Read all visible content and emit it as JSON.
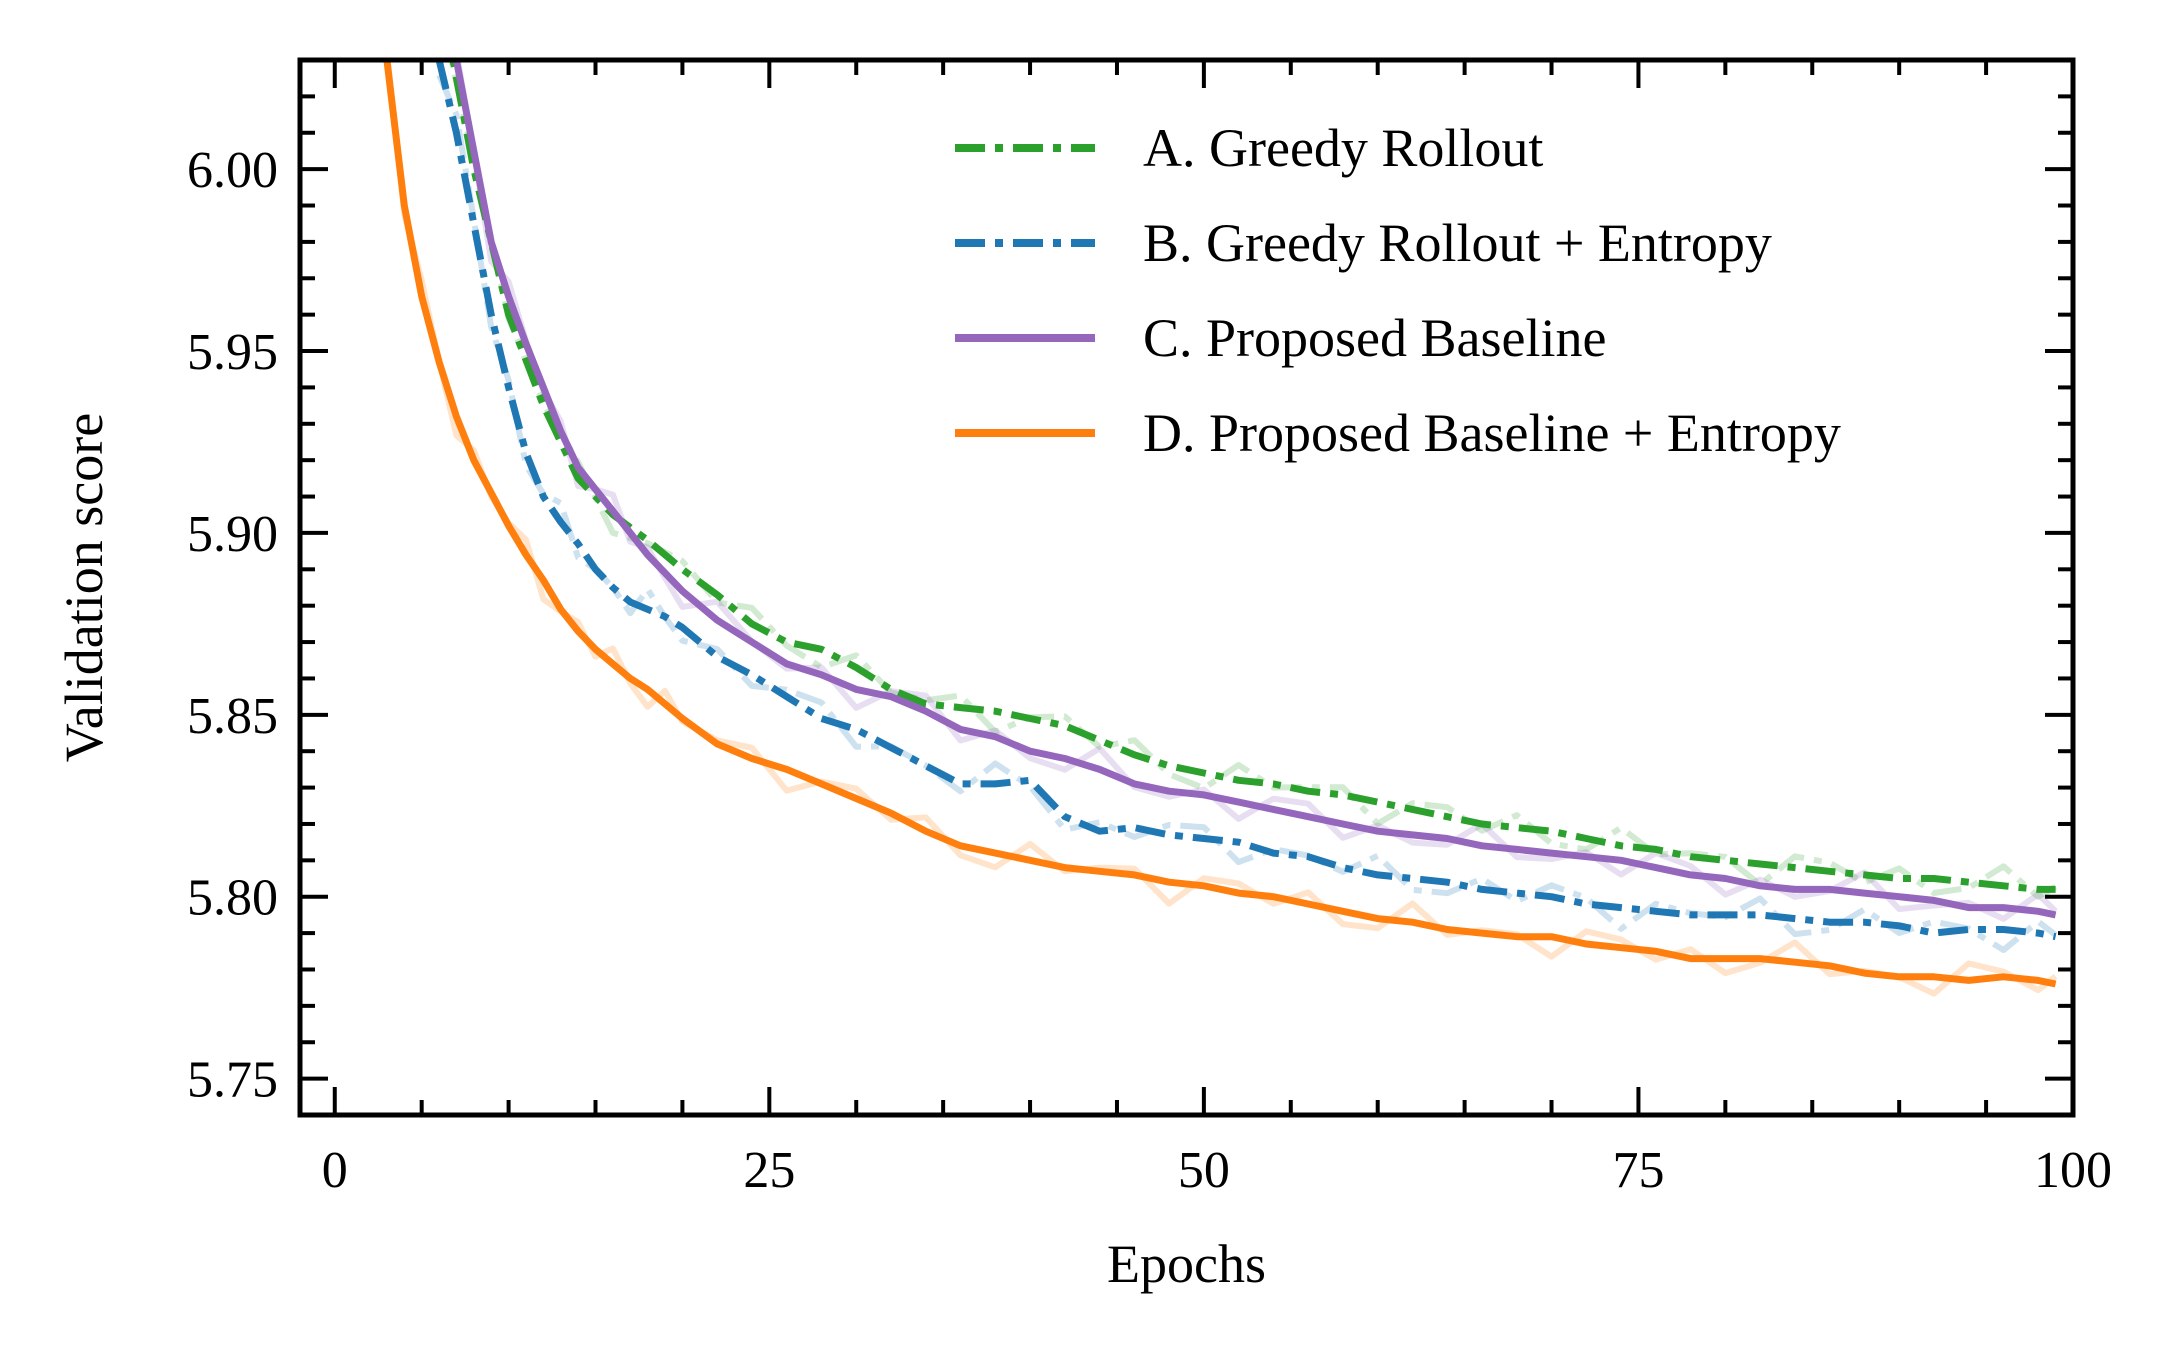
{
  "chart_data": {
    "type": "line",
    "xlabel": "Epochs",
    "ylabel": "Validation score",
    "xlim": [
      -2,
      100
    ],
    "ylim": [
      5.74,
      6.03
    ],
    "x_ticks": [
      0,
      25,
      50,
      75,
      100
    ],
    "x_tick_labels": [
      "0",
      "25",
      "50",
      "75",
      "100"
    ],
    "x_minor_step": 5,
    "y_ticks": [
      5.75,
      5.8,
      5.85,
      5.9,
      5.95,
      6.0
    ],
    "y_tick_labels": [
      "5.75",
      "5.80",
      "5.85",
      "5.90",
      "5.95",
      "6.00"
    ],
    "y_minor_step": 0.01,
    "grid": false,
    "legend_position": "top-right",
    "series": [
      {
        "name": "A. Greedy Rollout",
        "color": "#2ca02c",
        "style": "dashdot",
        "x": [
          4,
          6,
          8,
          10,
          12,
          14,
          16,
          18,
          20,
          22,
          24,
          26,
          28,
          30,
          32,
          34,
          36,
          38,
          40,
          42,
          44,
          46,
          48,
          50,
          52,
          54,
          56,
          58,
          60,
          62,
          64,
          66,
          68,
          70,
          72,
          74,
          76,
          78,
          80,
          82,
          84,
          86,
          88,
          90,
          92,
          94,
          96,
          98,
          99
        ],
        "y": [
          6.12,
          6.05,
          6.0,
          5.96,
          5.935,
          5.915,
          5.905,
          5.898,
          5.89,
          5.883,
          5.875,
          5.87,
          5.868,
          5.863,
          5.857,
          5.853,
          5.852,
          5.851,
          5.849,
          5.847,
          5.843,
          5.839,
          5.836,
          5.834,
          5.832,
          5.831,
          5.829,
          5.828,
          5.826,
          5.824,
          5.822,
          5.82,
          5.819,
          5.818,
          5.816,
          5.814,
          5.813,
          5.811,
          5.81,
          5.809,
          5.808,
          5.807,
          5.806,
          5.805,
          5.805,
          5.804,
          5.803,
          5.802,
          5.802
        ]
      },
      {
        "name": "B. Greedy Rollout + Entropy",
        "color": "#1f77b4",
        "style": "dashdot",
        "x": [
          6,
          7,
          8,
          9,
          10,
          11,
          12,
          13,
          14,
          15,
          16,
          17,
          18,
          19,
          20,
          22,
          24,
          26,
          28,
          30,
          32,
          34,
          36,
          38,
          40,
          42,
          44,
          46,
          48,
          50,
          52,
          54,
          56,
          58,
          60,
          62,
          64,
          66,
          68,
          70,
          72,
          74,
          76,
          78,
          80,
          82,
          84,
          86,
          88,
          90,
          92,
          94,
          96,
          98,
          99
        ],
        "y": [
          6.03,
          6.01,
          5.985,
          5.96,
          5.94,
          5.922,
          5.91,
          5.903,
          5.897,
          5.89,
          5.885,
          5.881,
          5.879,
          5.877,
          5.874,
          5.866,
          5.861,
          5.855,
          5.849,
          5.846,
          5.841,
          5.836,
          5.831,
          5.831,
          5.832,
          5.822,
          5.818,
          5.819,
          5.817,
          5.816,
          5.815,
          5.812,
          5.811,
          5.808,
          5.806,
          5.805,
          5.804,
          5.802,
          5.801,
          5.8,
          5.798,
          5.797,
          5.796,
          5.795,
          5.795,
          5.795,
          5.794,
          5.793,
          5.793,
          5.792,
          5.79,
          5.791,
          5.791,
          5.79,
          5.789
        ]
      },
      {
        "name": "C. Proposed Baseline",
        "color": "#9467bd",
        "style": "solid",
        "x": [
          7,
          8,
          9,
          10,
          11,
          12,
          13,
          14,
          15,
          16,
          17,
          18,
          19,
          20,
          22,
          24,
          26,
          28,
          30,
          32,
          34,
          36,
          38,
          40,
          42,
          44,
          46,
          48,
          50,
          52,
          54,
          56,
          58,
          60,
          62,
          64,
          66,
          68,
          70,
          72,
          74,
          76,
          78,
          80,
          82,
          84,
          86,
          88,
          90,
          92,
          94,
          96,
          98,
          99
        ],
        "y": [
          6.03,
          6.005,
          5.98,
          5.965,
          5.952,
          5.94,
          5.928,
          5.918,
          5.912,
          5.906,
          5.9,
          5.894,
          5.889,
          5.884,
          5.876,
          5.87,
          5.864,
          5.861,
          5.857,
          5.855,
          5.851,
          5.846,
          5.844,
          5.84,
          5.838,
          5.835,
          5.831,
          5.829,
          5.828,
          5.826,
          5.824,
          5.822,
          5.82,
          5.818,
          5.817,
          5.816,
          5.814,
          5.813,
          5.812,
          5.811,
          5.81,
          5.808,
          5.806,
          5.805,
          5.803,
          5.802,
          5.802,
          5.801,
          5.8,
          5.799,
          5.797,
          5.797,
          5.796,
          5.795
        ]
      },
      {
        "name": "D. Proposed Baseline + Entropy",
        "color": "#ff7f0e",
        "style": "solid",
        "x": [
          3,
          4,
          5,
          6,
          7,
          8,
          9,
          10,
          11,
          12,
          13,
          14,
          15,
          16,
          17,
          18,
          19,
          20,
          22,
          24,
          26,
          28,
          30,
          32,
          34,
          36,
          38,
          40,
          42,
          44,
          46,
          48,
          50,
          52,
          54,
          56,
          58,
          60,
          62,
          64,
          66,
          68,
          70,
          72,
          74,
          76,
          78,
          80,
          82,
          84,
          86,
          88,
          90,
          92,
          94,
          96,
          98,
          99
        ],
        "y": [
          6.03,
          5.99,
          5.965,
          5.947,
          5.932,
          5.92,
          5.911,
          5.902,
          5.894,
          5.887,
          5.879,
          5.873,
          5.868,
          5.864,
          5.86,
          5.857,
          5.853,
          5.849,
          5.842,
          5.838,
          5.835,
          5.831,
          5.827,
          5.823,
          5.818,
          5.814,
          5.812,
          5.81,
          5.808,
          5.807,
          5.806,
          5.804,
          5.803,
          5.801,
          5.8,
          5.798,
          5.796,
          5.794,
          5.793,
          5.791,
          5.79,
          5.789,
          5.789,
          5.787,
          5.786,
          5.785,
          5.783,
          5.783,
          5.783,
          5.782,
          5.781,
          5.779,
          5.778,
          5.778,
          5.777,
          5.778,
          5.777,
          5.776
        ]
      }
    ]
  }
}
